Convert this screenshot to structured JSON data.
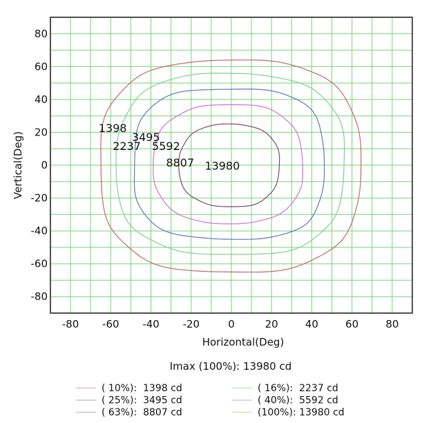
{
  "chart_data": {
    "type": "contour",
    "title": "",
    "xlabel": "Horizontal(Deg)",
    "ylabel": "Vertical(Deg)",
    "xlim": [
      -90,
      90
    ],
    "ylim": [
      -90,
      90
    ],
    "grid": true,
    "grid_step_deg": 10,
    "xticks": [
      -80,
      -60,
      -40,
      -20,
      0,
      20,
      40,
      60,
      80
    ],
    "yticks": [
      -80,
      -60,
      -40,
      -20,
      0,
      20,
      40,
      60,
      80
    ],
    "grid_color": "#74d274",
    "border_color": "#4f4f4f",
    "imax_cd": 13980,
    "imax_label": "Imax (100%): 13980 cd",
    "contours": [
      {
        "value": 1398,
        "percent": 10,
        "label": "1398",
        "line_color": "#bd6868",
        "label_color": "#dd2200",
        "label_pos_deg": [
          -59,
          22.5
        ],
        "extent_deg": {
          "left": -64.6,
          "right": 63.6,
          "top": 63.2,
          "bottom": -64.6
        },
        "shape_exp": 3.0,
        "draw": true
      },
      {
        "value": 2237,
        "percent": 16,
        "label": "2237",
        "line_color": "#7fcf8a",
        "label_color": "#22cc33",
        "label_pos_deg": [
          -52,
          11.5
        ],
        "extent_deg": {
          "left": -56.8,
          "right": 55.9,
          "top": 55.3,
          "bottom": -54.2
        },
        "shape_exp": 2.9,
        "draw": true
      },
      {
        "value": 3495,
        "percent": 25,
        "label": "3495",
        "line_color": "#6272bd",
        "label_color": "#2233cc",
        "label_pos_deg": [
          -42.5,
          17
        ],
        "extent_deg": {
          "left": -48.8,
          "right": 46.4,
          "top": 46.8,
          "bottom": -45.3
        },
        "shape_exp": 2.85,
        "draw": true
      },
      {
        "value": 5592,
        "percent": 40,
        "label": "5592",
        "line_color": "#cf6fcf",
        "label_color": "#dd22cc",
        "label_pos_deg": [
          -32.5,
          11.5
        ],
        "extent_deg": {
          "left": -38.5,
          "right": 35.2,
          "top": 36.7,
          "bottom": -35.2
        },
        "shape_exp": 2.7,
        "draw": true
      },
      {
        "value": 8807,
        "percent": 63,
        "label": "8807",
        "line_color": "#7c4670",
        "label_color": "#5a1080",
        "label_pos_deg": [
          -25.5,
          1.5
        ],
        "extent_deg": {
          "left": -25.9,
          "right": 23.8,
          "top": 24.8,
          "bottom": -25.2
        },
        "shape_exp": 2.55,
        "draw": true
      },
      {
        "value": 13980,
        "percent": 100,
        "label": "13980",
        "line_color": null,
        "label_color": "#ee9030",
        "label_pos_deg": [
          -4.5,
          -0.5
        ],
        "extent_deg": null,
        "shape_exp": null,
        "draw": false
      }
    ],
    "legend": {
      "position": "bottom",
      "items": [
        {
          "label": "( 10%):  1398 cd",
          "color": "#e4bcbc",
          "percent": 10,
          "value_cd": 1398
        },
        {
          "label": "( 25%):  3495 cd",
          "color": "#bcc4e0",
          "percent": 25,
          "value_cd": 3495
        },
        {
          "label": "( 63%):  8807 cd",
          "color": "#cbbad8",
          "percent": 63,
          "value_cd": 8807
        },
        {
          "label": "( 16%):  2237 cd",
          "color": "#c0e6c4",
          "percent": 16,
          "value_cd": 2237
        },
        {
          "label": "( 40%):  5592 cd",
          "color": "#e3c2e3",
          "percent": 40,
          "value_cd": 5592
        },
        {
          "label": "(100%): 13980 cd",
          "color": "#e9d7b4",
          "percent": 100,
          "value_cd": 13980
        }
      ]
    }
  }
}
